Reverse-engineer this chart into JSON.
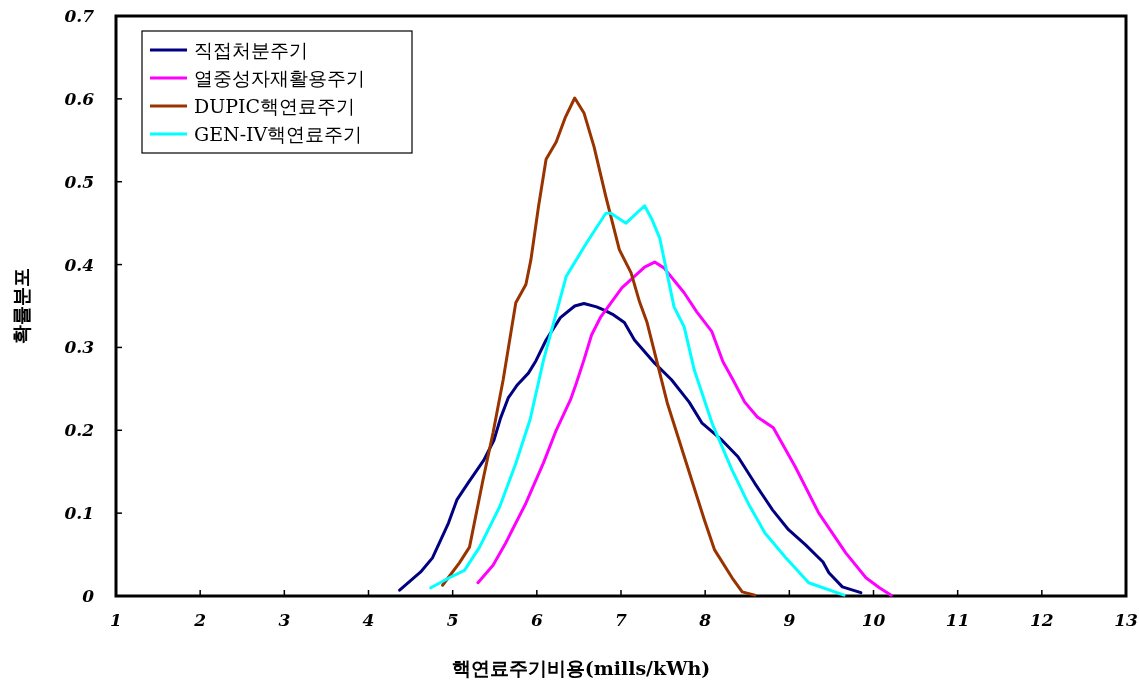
{
  "chart_data": {
    "type": "line",
    "xlabel": "핵연료주기비용(mills/kWh)",
    "ylabel": "확률분포",
    "xlim": [
      1,
      13
    ],
    "xticks": [
      1,
      2,
      3,
      4,
      5,
      6,
      7,
      8,
      9,
      10,
      11,
      12,
      13
    ],
    "ylim": [
      0,
      0.7
    ],
    "yticks": [
      0,
      0.1,
      0.2,
      0.3,
      0.4,
      0.5,
      0.6,
      0.7
    ],
    "legend": "top left",
    "series": [
      {
        "name": "직접처분주기",
        "color": "#000080",
        "x": [
          4.37,
          4.62,
          4.76,
          4.95,
          5.05,
          5.18,
          5.37,
          5.49,
          5.57,
          5.66,
          5.77,
          5.9,
          5.99,
          6.11,
          6.28,
          6.45,
          6.56,
          6.71,
          6.8,
          6.9,
          7.04,
          7.16,
          7.4,
          7.6,
          7.81,
          7.96,
          8.2,
          8.39,
          8.59,
          8.8,
          8.99,
          9.19,
          9.4,
          9.47,
          9.63,
          9.85
        ],
        "values": [
          0.007,
          0.029,
          0.046,
          0.088,
          0.116,
          0.136,
          0.164,
          0.188,
          0.215,
          0.239,
          0.255,
          0.269,
          0.284,
          0.309,
          0.336,
          0.35,
          0.353,
          0.349,
          0.345,
          0.34,
          0.33,
          0.309,
          0.281,
          0.261,
          0.234,
          0.209,
          0.188,
          0.168,
          0.136,
          0.104,
          0.08,
          0.062,
          0.041,
          0.028,
          0.011,
          0.004
        ]
      },
      {
        "name": "열중성자재활용주기",
        "color": "#ff00ff",
        "x": [
          5.3,
          5.48,
          5.63,
          5.87,
          6.08,
          6.23,
          6.4,
          6.47,
          6.56,
          6.65,
          6.76,
          7.01,
          7.28,
          7.4,
          7.51,
          7.75,
          7.9,
          8.08,
          8.21,
          8.33,
          8.47,
          8.62,
          8.81,
          9.07,
          9.35,
          9.67,
          9.91,
          10.07,
          10.21
        ],
        "values": [
          0.016,
          0.037,
          0.064,
          0.112,
          0.161,
          0.2,
          0.237,
          0.257,
          0.285,
          0.315,
          0.337,
          0.372,
          0.397,
          0.403,
          0.396,
          0.366,
          0.343,
          0.319,
          0.283,
          0.261,
          0.234,
          0.216,
          0.203,
          0.156,
          0.1,
          0.052,
          0.022,
          0.01,
          0.001
        ]
      },
      {
        "name": "DUPIC핵연료주기",
        "color": "#993300",
        "x": [
          4.88,
          5.08,
          5.2,
          5.36,
          5.48,
          5.6,
          5.75,
          5.87,
          5.93,
          6.02,
          6.11,
          6.23,
          6.34,
          6.45,
          6.56,
          6.68,
          6.82,
          6.98,
          7.12,
          7.22,
          7.31,
          7.55,
          7.79,
          7.99,
          8.11,
          8.32,
          8.44,
          8.59
        ],
        "values": [
          0.013,
          0.04,
          0.059,
          0.14,
          0.197,
          0.261,
          0.354,
          0.376,
          0.406,
          0.47,
          0.527,
          0.548,
          0.578,
          0.601,
          0.583,
          0.542,
          0.482,
          0.418,
          0.39,
          0.355,
          0.33,
          0.233,
          0.156,
          0.092,
          0.056,
          0.022,
          0.005,
          0.001
        ]
      },
      {
        "name": "GEN-IV핵연료주기",
        "color": "#00ffff",
        "x": [
          4.74,
          4.96,
          5.14,
          5.32,
          5.56,
          5.75,
          5.92,
          6.08,
          6.23,
          6.35,
          6.47,
          6.59,
          6.82,
          6.88,
          7.06,
          7.28,
          7.37,
          7.46,
          7.63,
          7.75,
          7.87,
          8.08,
          8.32,
          8.51,
          8.71,
          8.95,
          9.23,
          9.65
        ],
        "values": [
          0.01,
          0.022,
          0.031,
          0.059,
          0.108,
          0.16,
          0.213,
          0.285,
          0.341,
          0.386,
          0.406,
          0.426,
          0.462,
          0.462,
          0.45,
          0.471,
          0.454,
          0.432,
          0.349,
          0.325,
          0.273,
          0.209,
          0.152,
          0.112,
          0.076,
          0.047,
          0.016,
          0.001
        ]
      }
    ]
  }
}
